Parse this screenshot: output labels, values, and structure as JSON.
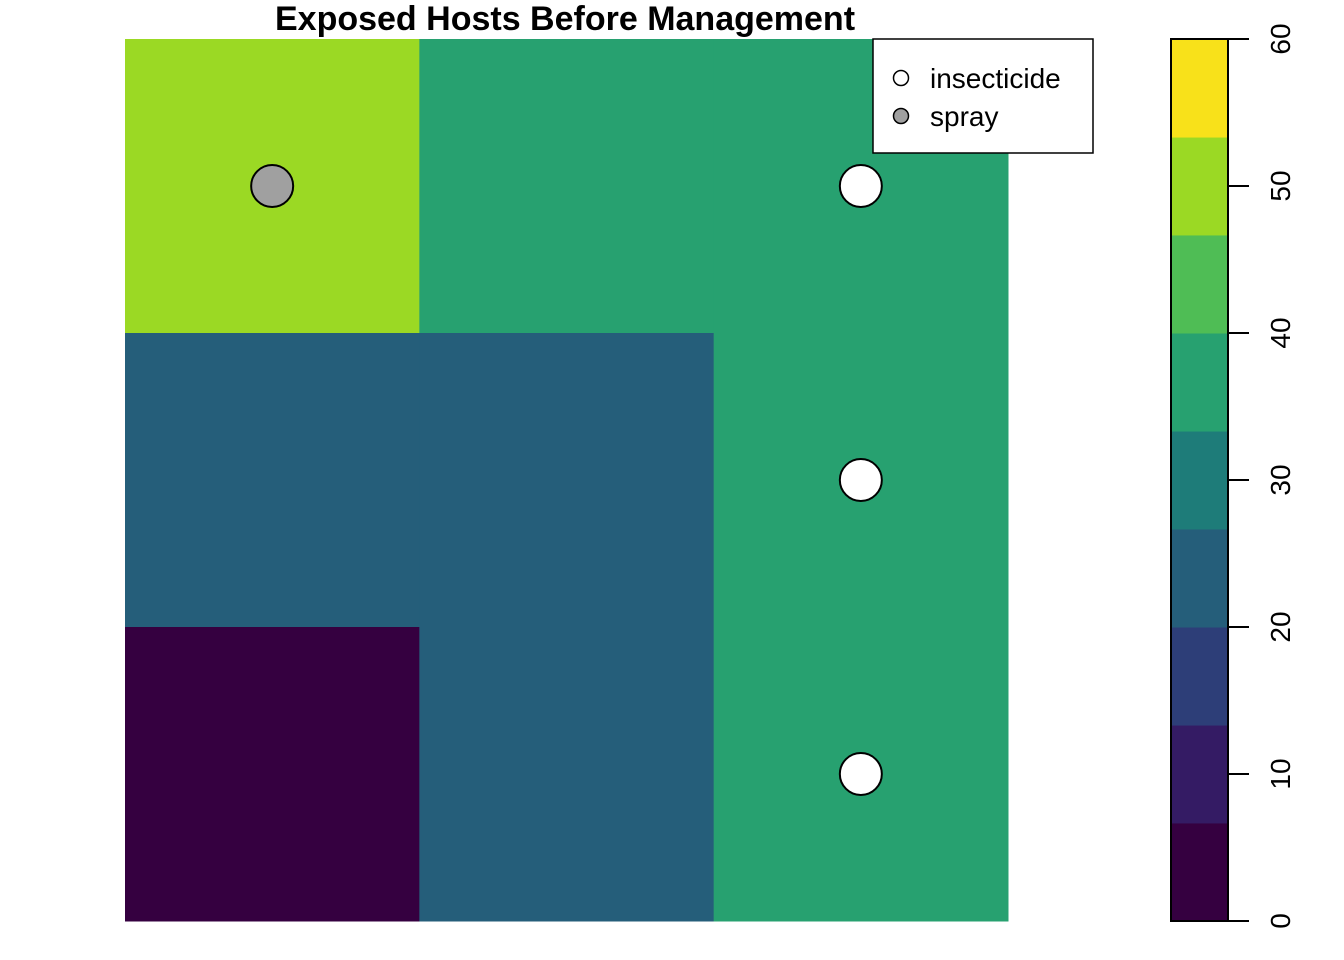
{
  "chart_data": {
    "type": "heatmap",
    "title": "Exposed Hosts Before Management",
    "grid": {
      "rows": 3,
      "cols": 3,
      "values": [
        [
          50,
          35,
          35
        ],
        [
          20,
          20,
          35
        ],
        [
          0,
          20,
          35
        ]
      ]
    },
    "points": [
      {
        "row": 0,
        "col": 0,
        "category": "spray"
      },
      {
        "row": 0,
        "col": 2,
        "category": "insecticide"
      },
      {
        "row": 1,
        "col": 2,
        "category": "insecticide"
      },
      {
        "row": 2,
        "col": 2,
        "category": "insecticide"
      }
    ],
    "legend": {
      "position": "top-right",
      "entries": [
        {
          "label": "insecticide",
          "fill": "#ffffff"
        },
        {
          "label": "spray",
          "fill": "#a0a0a0"
        }
      ]
    },
    "colorbar": {
      "range": [
        0,
        60
      ],
      "breaks": [
        0,
        6.67,
        13.33,
        20,
        26.67,
        33.33,
        40,
        46.67,
        53.33,
        60
      ],
      "colors": [
        "#350040",
        "#341b64",
        "#2d3e78",
        "#255e7a",
        "#1e7c79",
        "#27a170",
        "#4fbd55",
        "#9bd924",
        "#f8e11a"
      ],
      "ticks": [
        0,
        10,
        20,
        30,
        40,
        50,
        60
      ]
    }
  }
}
